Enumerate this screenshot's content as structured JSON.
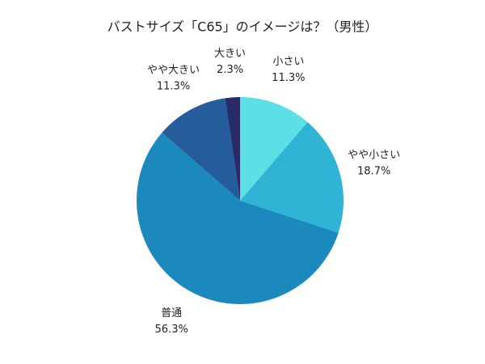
{
  "chart_data": {
    "type": "pie",
    "title": "バストサイズ「C65」のイメージは？（男性）",
    "categories": [
      "小さい",
      "やや小さい",
      "普通",
      "やや大きい",
      "大きい"
    ],
    "values": [
      11.3,
      18.7,
      56.3,
      11.3,
      2.3
    ],
    "value_labels": [
      "11.3%",
      "18.7%",
      "56.3%",
      "11.3%",
      "2.3%"
    ],
    "colors": [
      "#5ddfe6",
      "#2fb4d5",
      "#1b89bd",
      "#255c9b",
      "#292a68"
    ]
  }
}
